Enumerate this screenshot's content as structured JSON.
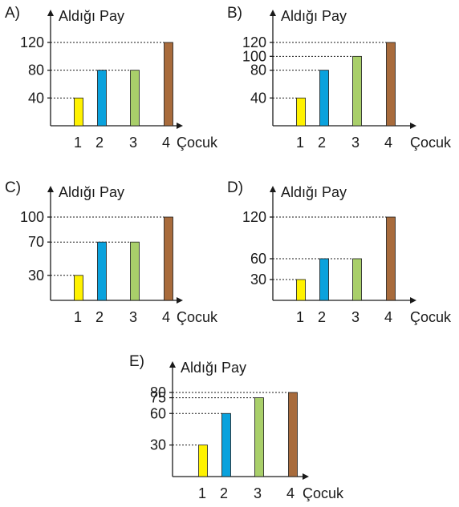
{
  "colors": {
    "bar_1": "#fff200",
    "bar_2": "#0aa2dd",
    "bar_3": "#a9cf6a",
    "bar_4": "#a86b3c",
    "ink": "#1a1a1a"
  },
  "chart_data": [
    {
      "type": "bar",
      "option": "A)",
      "ylabel": "Aldığı Pay",
      "xlabel": "Çocuk",
      "categories": [
        "1",
        "2",
        "3",
        "4"
      ],
      "values": [
        40,
        80,
        80,
        120
      ],
      "yticks": [
        40,
        80,
        120
      ],
      "grid": "dotted guide lines from y-axis to bar tops"
    },
    {
      "type": "bar",
      "option": "B)",
      "ylabel": "Aldığı Pay",
      "xlabel": "Çocuk",
      "categories": [
        "1",
        "2",
        "3",
        "4"
      ],
      "values": [
        40,
        80,
        100,
        120
      ],
      "yticks": [
        40,
        80,
        100,
        120
      ],
      "grid": "dotted guide lines from y-axis to bar tops"
    },
    {
      "type": "bar",
      "option": "C)",
      "ylabel": "Aldığı Pay",
      "xlabel": "Çocuk",
      "categories": [
        "1",
        "2",
        "3",
        "4"
      ],
      "values": [
        30,
        70,
        70,
        100
      ],
      "yticks": [
        30,
        70,
        100
      ],
      "grid": "dotted guide lines from y-axis to bar tops"
    },
    {
      "type": "bar",
      "option": "D)",
      "ylabel": "Aldığı Pay",
      "xlabel": "Çocuk",
      "categories": [
        "1",
        "2",
        "3",
        "4"
      ],
      "values": [
        30,
        60,
        60,
        120
      ],
      "yticks": [
        30,
        60,
        120
      ],
      "grid": "dotted guide lines from y-axis to bar tops"
    },
    {
      "type": "bar",
      "option": "E)",
      "ylabel": "Aldığı Pay",
      "xlabel": "Çocuk",
      "categories": [
        "1",
        "2",
        "3",
        "4"
      ],
      "values": [
        30,
        60,
        75,
        80
      ],
      "yticks": [
        30,
        60,
        75,
        80
      ],
      "grid": "dotted guide lines from y-axis to bar tops"
    }
  ]
}
